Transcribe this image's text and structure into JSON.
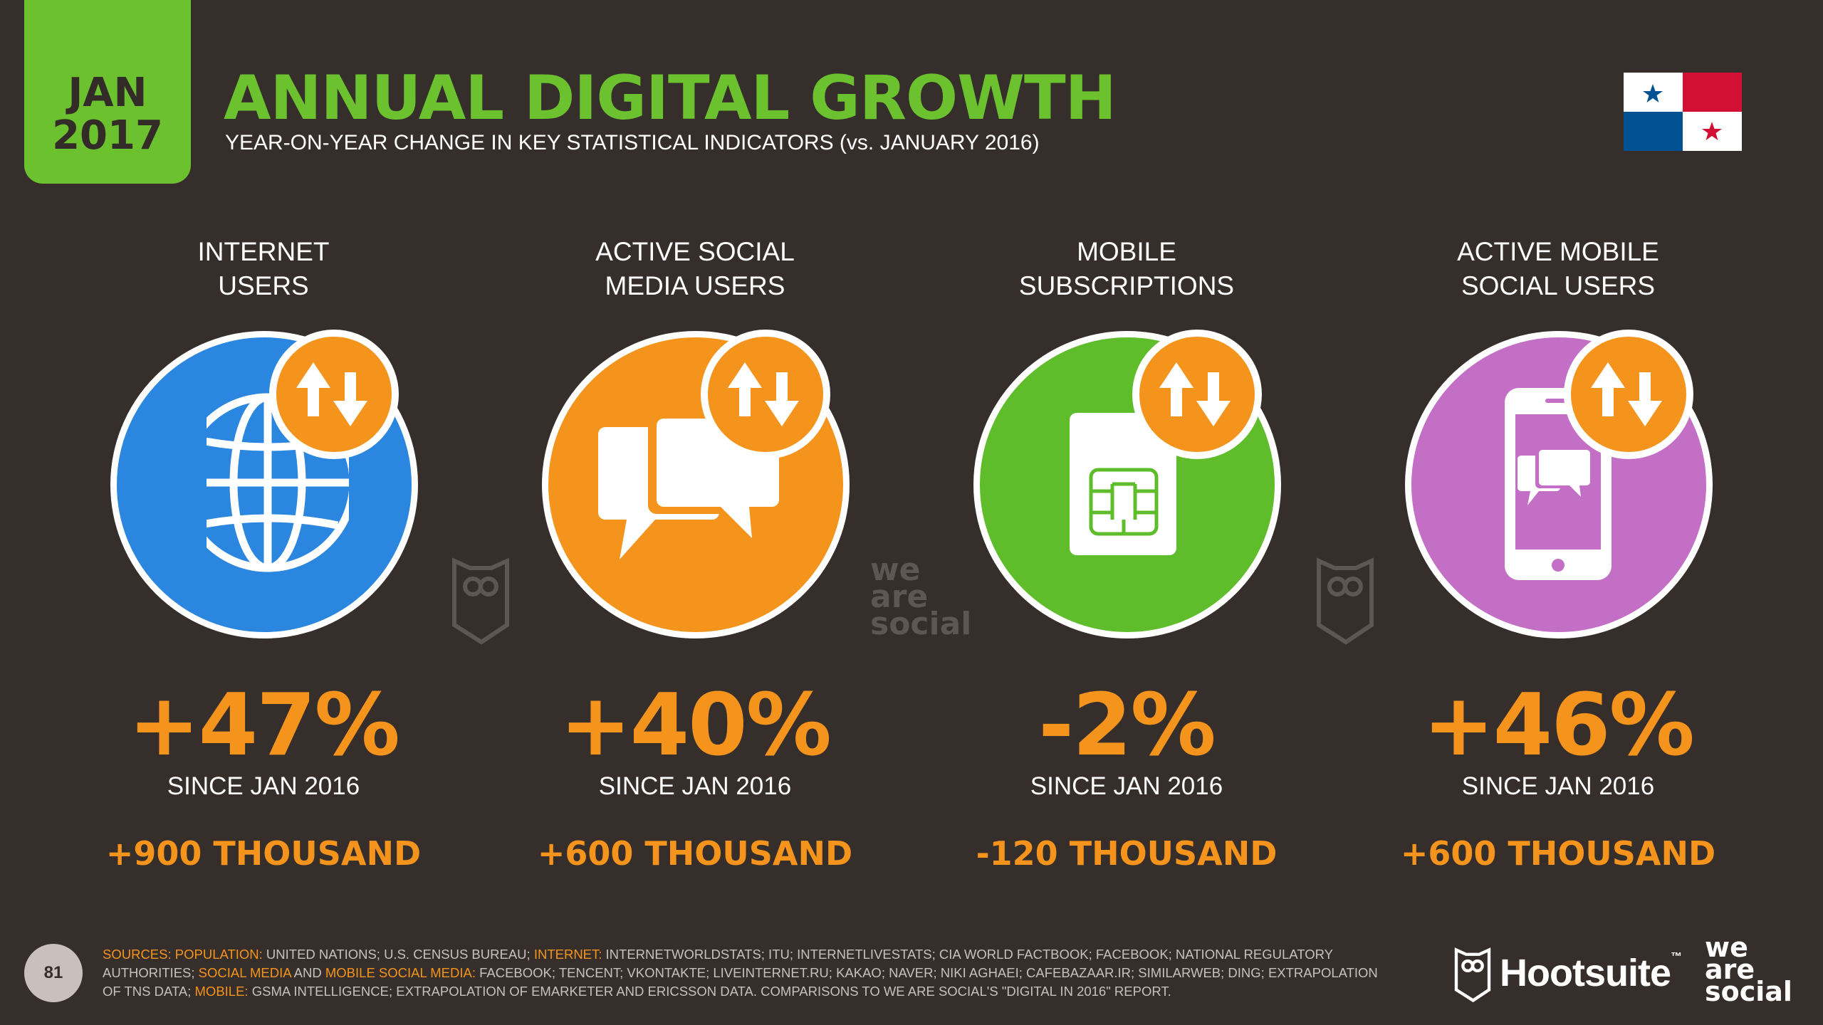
{
  "header": {
    "month": "JAN",
    "year": "2017",
    "title": "ANNUAL DIGITAL GROWTH",
    "subtitle": "YEAR-ON-YEAR CHANGE IN KEY STATISTICAL INDICATORS (vs. JANUARY 2016)"
  },
  "flag": {
    "country_icon": "panama-flag-icon"
  },
  "cards": [
    {
      "label_line1": "INTERNET",
      "label_line2": "USERS",
      "percent": "+47%",
      "since": "SINCE JAN 2016",
      "absolute": "+900 THOUSAND",
      "color": "#2b86e0",
      "icon": "globe-icon"
    },
    {
      "label_line1": "ACTIVE SOCIAL",
      "label_line2": "MEDIA USERS",
      "percent": "+40%",
      "since": "SINCE JAN 2016",
      "absolute": "+600 THOUSAND",
      "color": "#f5941d",
      "icon": "chat-bubbles-icon"
    },
    {
      "label_line1": "MOBILE",
      "label_line2": "SUBSCRIPTIONS",
      "percent": "-2%",
      "since": "SINCE JAN 2016",
      "absolute": "-120 THOUSAND",
      "color": "#5fbd2b",
      "icon": "sim-card-icon"
    },
    {
      "label_line1": "ACTIVE MOBILE",
      "label_line2": "SOCIAL USERS",
      "percent": "+46%",
      "since": "SINCE JAN 2016",
      "absolute": "+600 THOUSAND",
      "color": "#c36fc5",
      "icon": "mobile-chat-icon"
    }
  ],
  "watermark": {
    "line1": "we",
    "line2": "are",
    "line3": "social"
  },
  "footer": {
    "page_number": "81",
    "sources_label": "SOURCES:",
    "population_label": "POPULATION:",
    "population_text": " UNITED NATIONS; U.S. CENSUS BUREAU; ",
    "internet_label": "INTERNET:",
    "internet_text": " INTERNETWORLDSTATS; ITU; INTERNETLIVESTATS; CIA WORLD FACTBOOK; FACEBOOK; NATIONAL REGULATORY AUTHORITIES; ",
    "social_label": "SOCIAL MEDIA",
    "and_text": " AND ",
    "mobile_social_label": "MOBILE SOCIAL MEDIA:",
    "social_text": " FACEBOOK; TENCENT; VKONTAKTE; LIVEINTERNET.RU; KAKAO; NAVER; NIKI AGHAEI; CAFEBAZAAR.IR; SIMILARWEB; DING; EXTRAPOLATION OF TNS DATA; ",
    "mobile_label": "MOBILE:",
    "mobile_text": " GSMA INTELLIGENCE; EXTRAPOLATION OF EMARKETER AND ERICSSON DATA. COMPARISONS TO WE ARE SOCIAL'S \"DIGITAL IN 2016\" REPORT.",
    "hootsuite": "Hootsuite",
    "hootsuite_tm": "™",
    "was_line1": "we",
    "was_line2": "are",
    "was_line3": "social"
  }
}
